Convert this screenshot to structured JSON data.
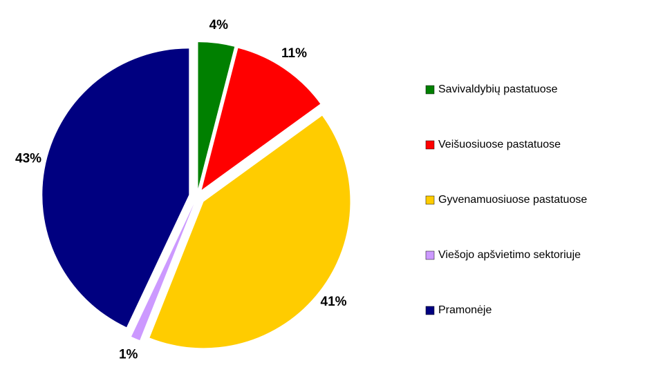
{
  "chart_data": {
    "type": "pie",
    "categories": [
      "Savivaldybių pastatuose",
      "Veišuosiuose pastatuose",
      "Gyvenamuosiuose pastatuose",
      "Viešojo apšvietimo sektoriuje",
      "Pramonėje"
    ],
    "values": [
      4,
      11,
      41,
      1,
      43
    ],
    "value_labels": [
      "4%",
      "11%",
      "41%",
      "1%",
      "43%"
    ],
    "colors": [
      "#008000",
      "#ff0000",
      "#ffcc00",
      "#cc99ff",
      "#000080"
    ]
  }
}
